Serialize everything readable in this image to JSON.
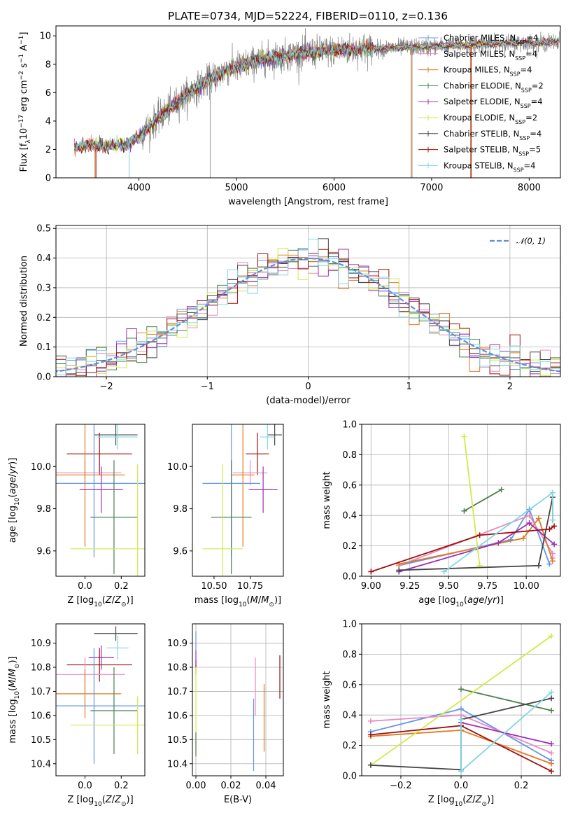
{
  "chart_data": [
    {
      "id": "spectrum",
      "type": "line",
      "title": "PLATE=0734, MJD=52224, FIBERID=0110, z=0.136",
      "xlabel": "wavelength [Angstrom, rest frame]",
      "ylabel_html": "Flux [f<tspan baseline-shift=\"sub\" font-size=\"9\">λ</tspan>10<tspan baseline-shift=\"super\" font-size=\"9\">−17</tspan> erg cm<tspan baseline-shift=\"super\" font-size=\"9\">−2</tspan> s<tspan baseline-shift=\"super\" font-size=\"9\">−1</tspan> A<tspan baseline-shift=\"super\" font-size=\"9\">−1</tspan>]",
      "xlim": [
        3150,
        8320
      ],
      "ylim": [
        0,
        10.7
      ],
      "xticks": [
        4000,
        5000,
        6000,
        7000,
        8000
      ],
      "yticks": [
        0,
        2,
        4,
        6,
        8,
        10
      ],
      "grid": false,
      "legend_position": "right",
      "spectrum_range": [
        3340,
        8310
      ],
      "continuum_anchors": {
        "wavelength": [
          3340,
          3500,
          3700,
          3900,
          4000,
          4100,
          4300,
          4500,
          4700,
          4900,
          5100,
          5300,
          5500,
          5700,
          5900,
          6100,
          6300,
          6500,
          6700,
          6900,
          7100,
          7300,
          7500,
          7700,
          7900,
          8100,
          8310
        ],
        "flux": [
          2.2,
          2.3,
          2.2,
          2.4,
          2.9,
          3.6,
          4.8,
          5.9,
          6.8,
          7.6,
          8.0,
          8.4,
          8.6,
          8.8,
          8.9,
          9.0,
          9.1,
          9.1,
          9.2,
          9.2,
          9.3,
          9.35,
          9.4,
          9.45,
          9.5,
          9.5,
          9.6
        ]
      },
      "series": [
        {
          "name": "Chabrier MILES, N<tspan baseline-shift=\"sub\" font-size=\"8\">SSP</tspan>=4",
          "color": "#6495ed"
        },
        {
          "name": "Salpeter MILES, N<tspan baseline-shift=\"sub\" font-size=\"8\">SSP</tspan>=4",
          "color": "#e889c2"
        },
        {
          "name": "Kroupa MILES, N<tspan baseline-shift=\"sub\" font-size=\"8\">SSP</tspan>=4",
          "color": "#e07b22"
        },
        {
          "name": "Chabrier ELODIE, N<tspan baseline-shift=\"sub\" font-size=\"8\">SSP</tspan>=2",
          "color": "#4c7f50"
        },
        {
          "name": "Salpeter ELODIE, N<tspan baseline-shift=\"sub\" font-size=\"8\">SSP</tspan>=4",
          "color": "#9e2fb7"
        },
        {
          "name": "Kroupa ELODIE, N<tspan baseline-shift=\"sub\" font-size=\"8\">SSP</tspan>=2",
          "color": "#d2e94a"
        },
        {
          "name": "Chabrier STELIB, N<tspan baseline-shift=\"sub\" font-size=\"8\">SSP</tspan>=4",
          "color": "#444444"
        },
        {
          "name": "Salpeter STELIB, N<tspan baseline-shift=\"sub\" font-size=\"8\">SSP</tspan>=5",
          "color": "#a01010"
        },
        {
          "name": "Kroupa STELIB, N<tspan baseline-shift=\"sub\" font-size=\"8\">SSP</tspan>=4",
          "color": "#7fd8e0"
        }
      ],
      "data_color": "#808080",
      "vertical_spikes": [
        3550,
        3900,
        4730,
        6800,
        7400
      ]
    },
    {
      "id": "residuals",
      "type": "histogram",
      "xlabel": "(data-model)/error",
      "ylabel": "Normed distribution",
      "xlim": [
        -2.5,
        2.5
      ],
      "ylim": [
        0,
        0.51
      ],
      "xticks": [
        -2,
        -1,
        0,
        1,
        2
      ],
      "yticks": [
        0.0,
        0.1,
        0.2,
        0.3,
        0.4,
        0.5
      ],
      "grid": true,
      "legend_position": "top-right",
      "legend": "𝒩(0, 1)",
      "legend_color": "#5f8fd8",
      "bin_width": 0.1
    },
    {
      "id": "age-vs-Z",
      "type": "errorbar",
      "xlabel_html": "Z [log<tspan baseline-shift=\"sub\" font-size=\"9\">10</tspan>(<tspan font-style=\"italic\">Z</tspan>/<tspan font-style=\"italic\">Z</tspan><tspan baseline-shift=\"sub\" font-size=\"9\">⊙</tspan>)]",
      "ylabel_html": "age  [log<tspan baseline-shift=\"sub\" font-size=\"9\">10</tspan>(<tspan font-style=\"italic\">age</tspan>/<tspan font-style=\"italic\">yr</tspan>)]",
      "xlim": [
        -0.16,
        0.33
      ],
      "ylim": [
        9.48,
        10.2
      ],
      "xticks": [
        0.0,
        0.2
      ],
      "yticks": [
        9.6,
        9.8,
        10.0
      ],
      "grid": false,
      "points": [
        {
          "color": "#a01010",
          "x": 0.08,
          "xerr": 0.18,
          "y": 10.06,
          "yerr": 0.1
        },
        {
          "color": "#444444",
          "x": 0.17,
          "xerr": 0.12,
          "y": 10.15,
          "yerr": 0.05
        },
        {
          "color": "#7fd8e0",
          "x": 0.18,
          "xerr": 0.11,
          "y": 10.14,
          "yerr": 0.06
        },
        {
          "color": "#e889c2",
          "x": 0.0,
          "xerr": 0.2,
          "y": 9.97,
          "yerr": 0.06
        },
        {
          "color": "#e07b22",
          "x": 0.0,
          "xerr": 0.22,
          "y": 9.96,
          "yerr": 0.34
        },
        {
          "color": "#6495ed",
          "x": 0.05,
          "xerr": 0.3,
          "y": 9.92,
          "yerr": 0.35
        },
        {
          "color": "#9e2fb7",
          "x": 0.09,
          "xerr": 0.12,
          "y": 9.89,
          "yerr": 0.11
        },
        {
          "color": "#4c7f50",
          "x": 0.16,
          "xerr": 0.13,
          "y": 9.76,
          "yerr": 0.27
        },
        {
          "color": "#d2e94a",
          "x": 0.29,
          "xerr": 0.37,
          "y": 9.61,
          "yerr": 0.4
        }
      ]
    },
    {
      "id": "age-vs-mass",
      "type": "errorbar",
      "xlabel_html": "mass [log<tspan baseline-shift=\"sub\" font-size=\"9\">10</tspan>(<tspan font-style=\"italic\">M</tspan>/<tspan font-style=\"italic\">M</tspan><tspan baseline-shift=\"sub\" font-size=\"9\">⊙</tspan>)]",
      "xlim": [
        10.35,
        10.98
      ],
      "ylim": [
        9.48,
        10.2
      ],
      "xticks": [
        10.5,
        10.75
      ],
      "yticks": [
        9.6,
        9.8,
        10.0
      ],
      "grid": false,
      "points": [
        {
          "color": "#444444",
          "x": 10.92,
          "xerr": 0.05,
          "y": 10.15,
          "yerr": 0.05
        },
        {
          "color": "#7fd8e0",
          "x": 10.87,
          "xerr": 0.05,
          "y": 10.14,
          "yerr": 0.06
        },
        {
          "color": "#a01010",
          "x": 10.8,
          "xerr": 0.08,
          "y": 10.06,
          "yerr": 0.1
        },
        {
          "color": "#e889c2",
          "x": 10.75,
          "xerr": 0.12,
          "y": 9.97,
          "yerr": 0.06
        },
        {
          "color": "#e07b22",
          "x": 10.7,
          "xerr": 0.08,
          "y": 9.96,
          "yerr": 0.34
        },
        {
          "color": "#6495ed",
          "x": 10.62,
          "xerr": 0.2,
          "y": 9.92,
          "yerr": 0.35
        },
        {
          "color": "#9e2fb7",
          "x": 10.84,
          "xerr": 0.1,
          "y": 9.89,
          "yerr": 0.11
        },
        {
          "color": "#4c7f50",
          "x": 10.62,
          "xerr": 0.14,
          "y": 9.76,
          "yerr": 0.27
        },
        {
          "color": "#d2e94a",
          "x": 10.56,
          "xerr": 0.14,
          "y": 9.61,
          "yerr": 0.4
        }
      ]
    },
    {
      "id": "weight-vs-age",
      "type": "line",
      "xlabel_html": "age  [log<tspan baseline-shift=\"sub\" font-size=\"9\">10</tspan>(<tspan font-style=\"italic\">age</tspan>/<tspan font-style=\"italic\">yr</tspan>)]",
      "ylabel": "mass weight",
      "xlim": [
        8.94,
        10.22
      ],
      "ylim": [
        0,
        1
      ],
      "xticks": [
        9.0,
        9.25,
        9.5,
        9.75,
        10.0
      ],
      "yticks": [
        0.0,
        0.2,
        0.4,
        0.6,
        0.8,
        1.0
      ],
      "grid": true,
      "series": [
        {
          "color": "#6495ed",
          "x": [
            9.18,
            9.9,
            10.02,
            10.15
          ],
          "y": [
            0.07,
            0.24,
            0.44,
            0.08
          ]
        },
        {
          "color": "#e889c2",
          "x": [
            9.18,
            10.02,
            10.17,
            10.17
          ],
          "y": [
            0.07,
            0.4,
            0.15,
            0.12
          ]
        },
        {
          "color": "#e07b22",
          "x": [
            9.18,
            9.98,
            10.08,
            10.17
          ],
          "y": [
            0.08,
            0.25,
            0.38,
            0.1
          ]
        },
        {
          "color": "#4c7f50",
          "x": [
            9.6,
            9.84
          ],
          "y": [
            0.43,
            0.57
          ]
        },
        {
          "color": "#9e2fb7",
          "x": [
            9.18,
            9.82,
            10.02,
            10.18
          ],
          "y": [
            0.03,
            0.22,
            0.35,
            0.21
          ]
        },
        {
          "color": "#d2e94a",
          "x": [
            9.6,
            9.7
          ],
          "y": [
            0.92,
            0.07
          ]
        },
        {
          "color": "#444444",
          "x": [
            9.18,
            10.08,
            10.17,
            10.17
          ],
          "y": [
            0.04,
            0.07,
            0.52,
            0.37
          ]
        },
        {
          "color": "#a01010",
          "x": [
            9.0,
            9.7,
            10.15,
            10.18
          ],
          "y": [
            0.03,
            0.27,
            0.31,
            0.33
          ]
        },
        {
          "color": "#7fd8e0",
          "x": [
            9.47,
            10.17,
            10.17
          ],
          "y": [
            0.03,
            0.55,
            0.37
          ]
        }
      ]
    },
    {
      "id": "mass-vs-Z",
      "type": "errorbar",
      "xlabel_html": "Z [log<tspan baseline-shift=\"sub\" font-size=\"9\">10</tspan>(<tspan font-style=\"italic\">Z</tspan>/<tspan font-style=\"italic\">Z</tspan><tspan baseline-shift=\"sub\" font-size=\"9\">⊙</tspan>)]",
      "ylabel_html": "mass [log<tspan baseline-shift=\"sub\" font-size=\"9\">10</tspan>(<tspan font-style=\"italic\">M</tspan>/<tspan font-style=\"italic\">M</tspan><tspan baseline-shift=\"sub\" font-size=\"9\">⊙</tspan>)]",
      "xlim": [
        -0.16,
        0.33
      ],
      "ylim": [
        10.35,
        10.98
      ],
      "xticks": [
        0.0,
        0.2
      ],
      "yticks": [
        10.4,
        10.5,
        10.6,
        10.7,
        10.8,
        10.9
      ],
      "grid": false,
      "points": [
        {
          "color": "#444444",
          "x": 0.17,
          "xerr": 0.12,
          "y": 10.94,
          "yerr": 0.03
        },
        {
          "color": "#7fd8e0",
          "x": 0.18,
          "xerr": 0.06,
          "y": 10.88,
          "yerr": 0.05
        },
        {
          "color": "#9e2fb7",
          "x": 0.09,
          "xerr": 0.07,
          "y": 10.84,
          "yerr": 0.05
        },
        {
          "color": "#a01010",
          "x": 0.08,
          "xerr": 0.18,
          "y": 10.81,
          "yerr": 0.07
        },
        {
          "color": "#e889c2",
          "x": 0.0,
          "xerr": 0.22,
          "y": 10.77,
          "yerr": 0.07
        },
        {
          "color": "#e07b22",
          "x": 0.0,
          "xerr": 0.2,
          "y": 10.69,
          "yerr": 0.1
        },
        {
          "color": "#6495ed",
          "x": 0.05,
          "xerr": 0.3,
          "y": 10.64,
          "yerr": 0.24
        },
        {
          "color": "#4c7f50",
          "x": 0.16,
          "xerr": 0.13,
          "y": 10.62,
          "yerr": 0.18
        },
        {
          "color": "#d2e94a",
          "x": 0.29,
          "xerr": 0.37,
          "y": 10.56,
          "yerr": 0.12
        }
      ]
    },
    {
      "id": "mass-vs-ebv",
      "type": "errorbar",
      "xlabel": "E(B-V)",
      "xlim": [
        -0.002,
        0.05
      ],
      "ylim": [
        10.35,
        10.98
      ],
      "xticks": [
        0.0,
        0.02,
        0.04
      ],
      "yticks": [
        10.4,
        10.5,
        10.6,
        10.7,
        10.8,
        10.9
      ],
      "grid": true,
      "points": [
        {
          "color": "#6495ed",
          "x": 0.0,
          "y": 10.91,
          "yerr": 0.04
        },
        {
          "color": "#a01010",
          "x": 0.0,
          "y": 10.8,
          "yerr": 0.03
        },
        {
          "color": "#9e2fb7",
          "x": 0.0,
          "y": 10.84,
          "yerr": 0.03
        },
        {
          "color": "#d2e94a",
          "x": 0.0,
          "y": 10.62,
          "yerr": 0.18
        },
        {
          "color": "#4c7f50",
          "x": 0.0,
          "y": 10.48,
          "yerr": 0.05
        },
        {
          "color": "#6495ed",
          "x": 0.033,
          "y": 10.52,
          "yerr": 0.15
        },
        {
          "color": "#e889c2",
          "x": 0.034,
          "y": 10.72,
          "yerr": 0.12
        },
        {
          "color": "#e07b22",
          "x": 0.039,
          "y": 10.59,
          "yerr": 0.14
        },
        {
          "color": "#a01010",
          "x": 0.048,
          "y": 10.76,
          "yerr": 0.09
        }
      ]
    },
    {
      "id": "weight-vs-Z",
      "type": "line",
      "xlabel_html": "Z [log<tspan baseline-shift=\"sub\" font-size=\"9\">10</tspan>(<tspan font-style=\"italic\">Z</tspan>/<tspan font-style=\"italic\">Z</tspan><tspan baseline-shift=\"sub\" font-size=\"9\">⊙</tspan>)]",
      "ylabel": "mass weight",
      "xlim": [
        -0.33,
        0.33
      ],
      "ylim": [
        0,
        1
      ],
      "xticks": [
        -0.2,
        0.0,
        0.2
      ],
      "yticks": [
        0.0,
        0.2,
        0.4,
        0.6,
        0.8,
        1.0
      ],
      "grid": true,
      "series": [
        {
          "color": "#6495ed",
          "x": [
            -0.3,
            0.0,
            0.3
          ],
          "y": [
            0.29,
            0.44,
            0.1
          ]
        },
        {
          "color": "#e889c2",
          "x": [
            -0.3,
            0.0,
            0.3
          ],
          "y": [
            0.36,
            0.4,
            0.15
          ]
        },
        {
          "color": "#e07b22",
          "x": [
            -0.3,
            0.0,
            0.3
          ],
          "y": [
            0.26,
            0.3,
            0.08
          ]
        },
        {
          "color": "#4c7f50",
          "x": [
            0.0,
            0.3
          ],
          "y": [
            0.57,
            0.43
          ]
        },
        {
          "color": "#9e2fb7",
          "x": [
            0.0,
            0.3
          ],
          "y": [
            0.35,
            0.21
          ]
        },
        {
          "color": "#d2e94a",
          "x": [
            -0.3,
            0.3
          ],
          "y": [
            0.07,
            0.92
          ]
        },
        {
          "color": "#444444",
          "x": [
            -0.3,
            0.0,
            0.0,
            0.3
          ],
          "y": [
            0.07,
            0.04,
            0.37,
            0.51
          ]
        },
        {
          "color": "#a01010",
          "x": [
            -0.3,
            0.0,
            0.3
          ],
          "y": [
            0.27,
            0.33,
            0.03
          ]
        },
        {
          "color": "#7fd8e0",
          "x": [
            0.0,
            0.0,
            0.3
          ],
          "y": [
            0.37,
            0.03,
            0.55
          ]
        }
      ]
    }
  ]
}
